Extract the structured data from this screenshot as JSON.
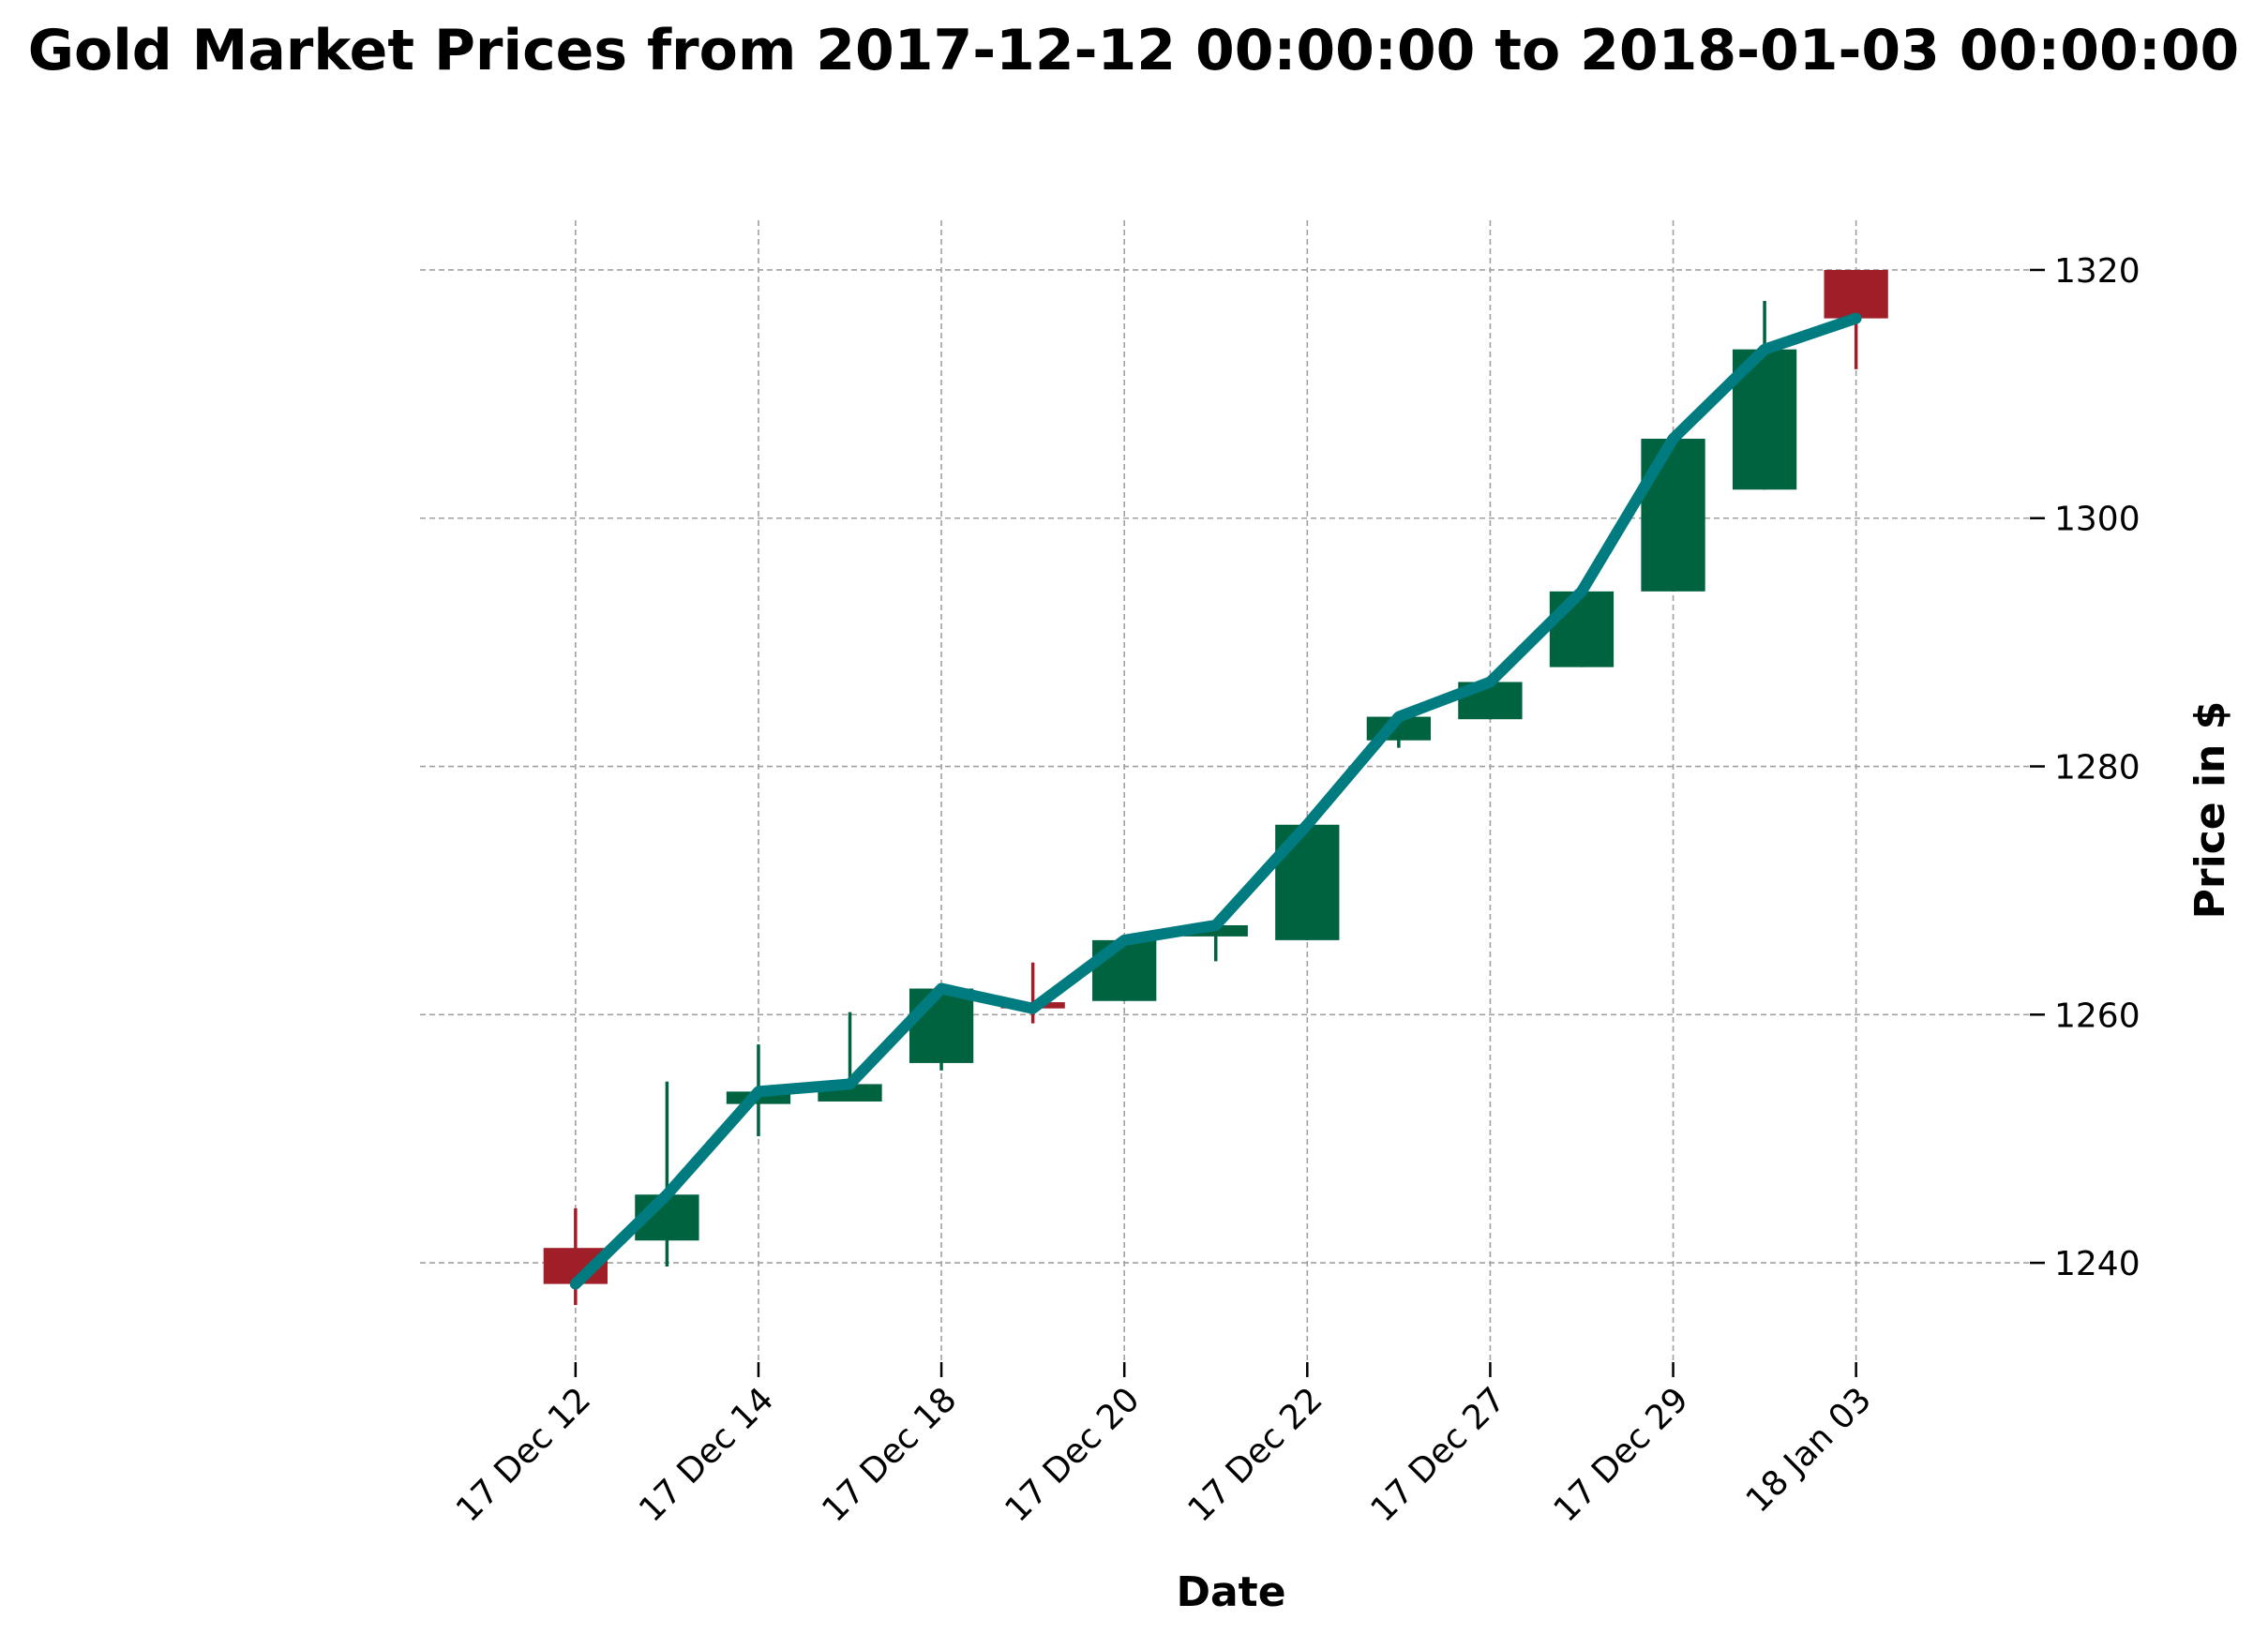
{
  "chart_data": {
    "type": "candlestick",
    "title": "Gold Market Prices from 2017-12-12 00:00:00 to 2018-01-03 00:00:00",
    "xlabel": "Date",
    "ylabel": "Price in $",
    "ylim": [
      1232,
      1324
    ],
    "yticks": [
      1240,
      1260,
      1280,
      1300,
      1320
    ],
    "grid": true,
    "y_axis_side": "right",
    "xtick_labels": [
      "17 Dec 12",
      "17 Dec 14",
      "17 Dec 18",
      "17 Dec 20",
      "17 Dec 22",
      "17 Dec 27",
      "17 Dec 29",
      "18 Jan 03"
    ],
    "xtick_positions": [
      0,
      2,
      4,
      6,
      8,
      10,
      12,
      14
    ],
    "colors": {
      "up": "#006340",
      "down": "#a01e28",
      "line": "#007b80"
    },
    "candles": [
      {
        "date": "2017-12-12",
        "open": 1241.2,
        "high": 1244.4,
        "low": 1236.6,
        "close": 1238.3
      },
      {
        "date": "2017-12-13",
        "open": 1241.8,
        "high": 1254.6,
        "low": 1239.7,
        "close": 1245.5
      },
      {
        "date": "2017-12-14",
        "open": 1252.8,
        "high": 1257.6,
        "low": 1250.2,
        "close": 1253.8
      },
      {
        "date": "2017-12-15",
        "open": 1253.0,
        "high": 1260.2,
        "low": 1253.0,
        "close": 1254.4
      },
      {
        "date": "2017-12-18",
        "open": 1256.1,
        "high": 1262.2,
        "low": 1255.5,
        "close": 1262.1
      },
      {
        "date": "2017-12-19",
        "open": 1261.0,
        "high": 1264.2,
        "low": 1259.3,
        "close": 1260.5
      },
      {
        "date": "2017-12-20",
        "open": 1261.1,
        "high": 1266.0,
        "low": 1261.1,
        "close": 1266.0
      },
      {
        "date": "2017-12-21",
        "open": 1266.3,
        "high": 1267.4,
        "low": 1264.3,
        "close": 1267.2
      },
      {
        "date": "2017-12-22",
        "open": 1266.0,
        "high": 1275.3,
        "low": 1266.0,
        "close": 1275.3
      },
      {
        "date": "2017-12-26",
        "open": 1282.1,
        "high": 1284.3,
        "low": 1281.5,
        "close": 1284.0
      },
      {
        "date": "2017-12-27",
        "open": 1283.8,
        "high": 1287.0,
        "low": 1283.8,
        "close": 1286.8
      },
      {
        "date": "2017-12-28",
        "open": 1288.0,
        "high": 1294.1,
        "low": 1288.0,
        "close": 1294.1
      },
      {
        "date": "2017-12-29",
        "open": 1294.1,
        "high": 1306.4,
        "low": 1294.1,
        "close": 1306.4
      },
      {
        "date": "2018-01-02",
        "open": 1302.3,
        "high": 1317.5,
        "low": 1302.3,
        "close": 1313.6
      },
      {
        "date": "2018-01-03",
        "open": 1320.0,
        "high": 1320.0,
        "low": 1312.0,
        "close": 1316.1
      }
    ]
  }
}
